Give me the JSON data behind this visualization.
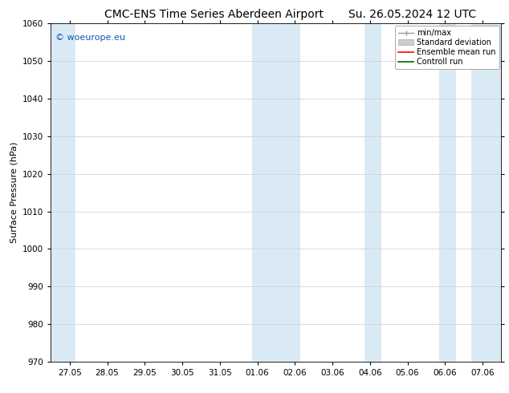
{
  "title_left": "CMC-ENS Time Series Aberdeen Airport",
  "title_right": "Su. 26.05.2024 12 UTC",
  "ylabel": "Surface Pressure (hPa)",
  "ylim": [
    970,
    1060
  ],
  "yticks": [
    970,
    980,
    990,
    1000,
    1010,
    1020,
    1030,
    1040,
    1050,
    1060
  ],
  "xtick_labels": [
    "27.05",
    "28.05",
    "29.05",
    "30.05",
    "31.05",
    "01.06",
    "02.06",
    "03.06",
    "04.06",
    "05.06",
    "06.06",
    "07.06"
  ],
  "xtick_positions": [
    1,
    2,
    3,
    4,
    5,
    6,
    7,
    8,
    9,
    10,
    11,
    12
  ],
  "xlim": [
    0.5,
    12.5
  ],
  "shaded_regions": [
    {
      "x_start": 0.5,
      "x_end": 1.15
    },
    {
      "x_start": 5.85,
      "x_end": 7.15
    },
    {
      "x_start": 8.85,
      "x_end": 9.3
    },
    {
      "x_start": 10.85,
      "x_end": 11.3
    },
    {
      "x_start": 11.7,
      "x_end": 12.5
    }
  ],
  "shade_color": "#daeaf5",
  "legend_items": [
    {
      "label": "min/max"
    },
    {
      "label": "Standard deviation"
    },
    {
      "label": "Ensemble mean run"
    },
    {
      "label": "Controll run"
    }
  ],
  "watermark": "© woeurope.eu",
  "watermark_color": "#1155bb",
  "bg_color": "#ffffff",
  "grid_color": "#cccccc",
  "title_fontsize": 10,
  "label_fontsize": 8,
  "tick_fontsize": 7.5
}
